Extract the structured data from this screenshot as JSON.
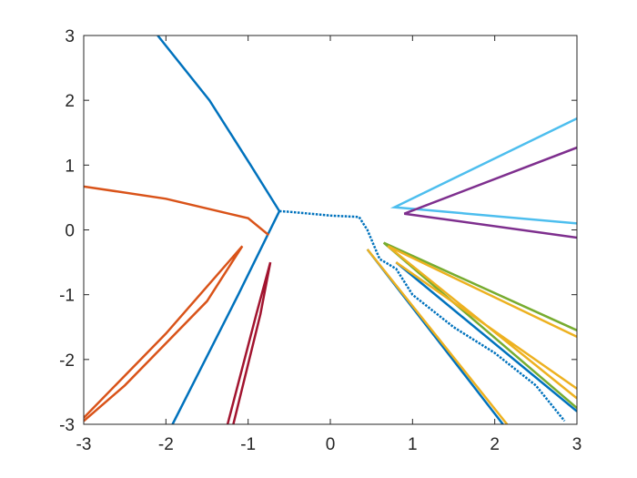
{
  "chart_data": {
    "type": "line",
    "xlim": [
      -3,
      3
    ],
    "ylim": [
      -3,
      3
    ],
    "xticks": [
      -3,
      -2,
      -1,
      0,
      1,
      2,
      3
    ],
    "yticks": [
      -3,
      -2,
      -1,
      0,
      1,
      2,
      3
    ],
    "box": true,
    "series": [
      {
        "color": "#0072BD",
        "style": "solid",
        "x": [
          -2.1,
          -1.47,
          -0.97,
          -0.62,
          -1.12,
          -1.92,
          null,
          0.45,
          2.1,
          null,
          0.8,
          3
        ],
        "values": [
          3,
          2,
          1,
          0.29,
          -1,
          -3,
          null,
          -0.3,
          -3,
          null,
          -0.5,
          -2.8
        ]
      },
      {
        "color": "#D95319",
        "style": "solid",
        "x": [
          -3,
          -2,
          -1,
          -0.75,
          null,
          -3,
          -2,
          -1.07,
          -1.5,
          -2.5,
          -3
        ],
        "values": [
          0.67,
          0.48,
          0.18,
          -0.08,
          null,
          -2.9,
          -1.6,
          -0.25,
          -1.1,
          -2.4,
          -2.95
        ]
      },
      {
        "color": "#A2142F",
        "style": "solid",
        "x": [
          -1.25,
          -0.9,
          -0.73,
          -0.85,
          -1.18
        ],
        "values": [
          -3,
          -1.3,
          -0.5,
          -1.3,
          -3
        ]
      },
      {
        "color": "#0072BD",
        "style": "dotted",
        "x": [
          -0.62,
          -0.5,
          0,
          0.35,
          0.45,
          0.6,
          0.8,
          1,
          1.5,
          2,
          2.5,
          2.85
        ],
        "values": [
          0.29,
          0.28,
          0.22,
          0.2,
          0,
          -0.45,
          -0.6,
          -1,
          -1.5,
          -1.9,
          -2.4,
          -2.95
        ]
      },
      {
        "color": "#4DBEEE",
        "style": "solid",
        "x": [
          3,
          0.78,
          3
        ],
        "values": [
          1.72,
          0.35,
          0.1
        ]
      },
      {
        "color": "#7E2F8E",
        "style": "solid",
        "x": [
          3,
          0.9,
          3
        ],
        "values": [
          1.27,
          0.25,
          -0.12
        ]
      },
      {
        "color": "#77AC30",
        "style": "solid",
        "x": [
          3,
          0.65,
          3
        ],
        "values": [
          -1.55,
          -0.2,
          -2.75
        ]
      },
      {
        "color": "#EDB120",
        "style": "solid",
        "x": [
          0.45,
          2.15,
          null,
          3,
          0.7,
          3,
          null,
          0.8,
          3
        ],
        "values": [
          -0.3,
          -3,
          null,
          -1.65,
          -0.25,
          -2.6,
          null,
          -0.5,
          -2.45
        ]
      }
    ]
  }
}
